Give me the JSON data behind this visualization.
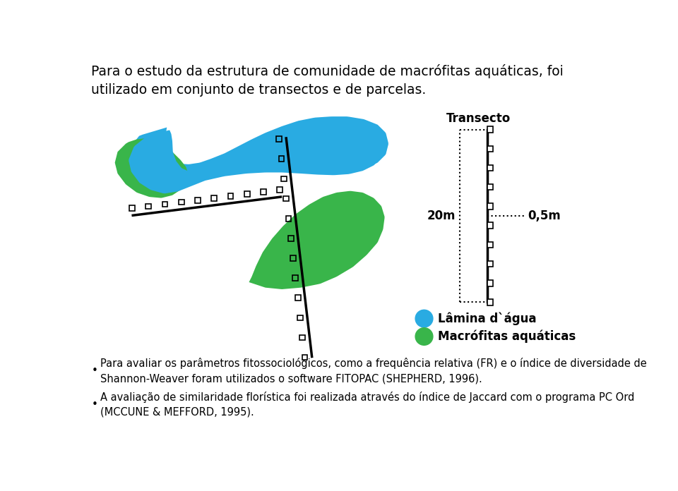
{
  "title_text": "Para o estudo da estrutura de comunidade de macrófitas aquáticas, foi\nutilizado em conjunto de transectos e de parcelas.",
  "legend_lamina": "Lâmina d`água",
  "legend_macrofitas": "Macrófitas aquáticas",
  "transecto_label": "Transecto",
  "label_20m": "20m",
  "label_05m": "0,5m",
  "bullet1": "Para avaliar os parâmetros fitossociológicos, como a frequência relativa (FR) e o índice de diversidade de\nShannon-Weaver foram utilizados o software FITOPAC (SHEPHERD, 1996).",
  "bullet2": "A avaliação de similaridade florística foi realizada através do índice de Jaccard com o programa PC Ord\n(MCCUNE & MEFFORD, 1995).",
  "color_lamina": "#29ABE2",
  "color_macrofitas": "#39B54A",
  "color_black": "#000000",
  "bg_color": "#ffffff"
}
